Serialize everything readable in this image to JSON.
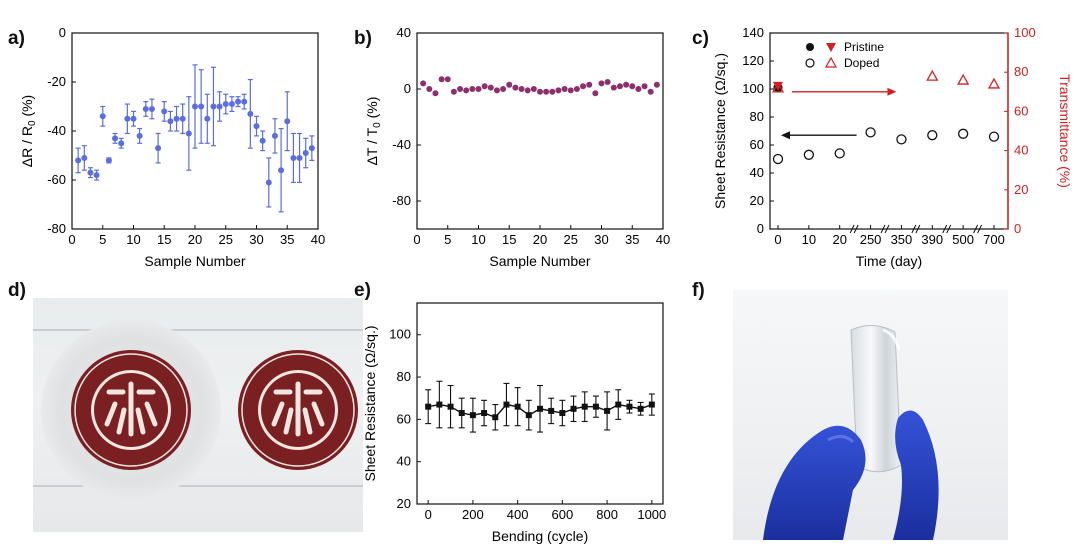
{
  "panel_labels": {
    "a": "a)",
    "b": "b)",
    "c": "c)",
    "d": "d)",
    "e": "e)",
    "f": "f)"
  },
  "chart_data": [
    {
      "id": "a",
      "type": "scatter",
      "title": "",
      "xlabel": "Sample Number",
      "ylabel": "ΔR / R0 (%)",
      "xlim": [
        0,
        40
      ],
      "ylim": [
        -80,
        0
      ],
      "xticks": [
        0,
        5,
        10,
        15,
        20,
        25,
        30,
        35,
        40
      ],
      "yticks": [
        0,
        -20,
        -40,
        -60,
        -80
      ],
      "color": "#5b6ee0",
      "series": [
        {
          "name": "ΔR/R0",
          "x": [
            1,
            2,
            3,
            4,
            5,
            6,
            7,
            8,
            9,
            10,
            11,
            12,
            13,
            14,
            15,
            16,
            17,
            18,
            19,
            20,
            21,
            22,
            23,
            24,
            25,
            26,
            27,
            28,
            29,
            30,
            31,
            32,
            33,
            34,
            35,
            36,
            37,
            38,
            39
          ],
          "values": [
            -52,
            -51,
            -57,
            -58,
            -34,
            -52,
            -43,
            -45,
            -35,
            -35,
            -42,
            -31,
            -31,
            -47,
            -32,
            -36,
            -35,
            -35,
            -41,
            -30,
            -30,
            -35,
            -30,
            -30,
            -29,
            -29,
            -28,
            -28,
            -33,
            -38,
            -44,
            -61,
            -42,
            -56,
            -36,
            -51,
            -51,
            -49,
            -47
          ],
          "errors": [
            5,
            5,
            2,
            2,
            4,
            1,
            2,
            2,
            6,
            3,
            3,
            3,
            4,
            6,
            4,
            4,
            5,
            6,
            15,
            17,
            15,
            10,
            16,
            6,
            4,
            3,
            2,
            3,
            14,
            4,
            4,
            10,
            7,
            17,
            12,
            10,
            10,
            6,
            5
          ]
        }
      ]
    },
    {
      "id": "b",
      "type": "scatter",
      "title": "",
      "xlabel": "Sample Number",
      "ylabel": "ΔT / T0 (%)",
      "xlim": [
        0,
        40
      ],
      "ylim": [
        -100,
        40
      ],
      "xticks": [
        0,
        5,
        10,
        15,
        20,
        25,
        30,
        35,
        40
      ],
      "yticks": [
        40,
        0,
        -40,
        -80
      ],
      "color": "#8e2f6d",
      "series": [
        {
          "name": "ΔT/T0",
          "x": [
            1,
            2,
            3,
            4,
            5,
            6,
            7,
            8,
            9,
            10,
            11,
            12,
            13,
            14,
            15,
            16,
            17,
            18,
            19,
            20,
            21,
            22,
            23,
            24,
            25,
            26,
            27,
            28,
            29,
            30,
            31,
            32,
            33,
            34,
            35,
            36,
            37,
            38,
            39
          ],
          "values": [
            4,
            0,
            -3,
            7,
            7,
            -2,
            0,
            -1,
            0,
            0,
            2,
            1,
            -1,
            0,
            3,
            1,
            0,
            -1,
            0,
            -2,
            -2,
            -2,
            -1,
            0,
            -1,
            0,
            2,
            3,
            -3,
            4,
            5,
            1,
            2,
            3,
            2,
            0,
            2,
            -2,
            3
          ]
        }
      ]
    },
    {
      "id": "c",
      "type": "scatter",
      "title": "",
      "xlabel": "Time (day)",
      "ylabel": "Sheet Resistance (Ω/sq.)",
      "ylabel_right": "Transmittance (%)",
      "categories": [
        "0",
        "10",
        "20",
        "250",
        "350",
        "390",
        "500",
        "700"
      ],
      "ylim": [
        0,
        140
      ],
      "ylim_right": [
        0,
        100
      ],
      "yticks": [
        0,
        20,
        40,
        60,
        80,
        100,
        120,
        140
      ],
      "yticks_right": [
        0,
        20,
        40,
        60,
        80,
        100
      ],
      "right_color": "#d42020",
      "legend": {
        "pristine": "Pristine",
        "doped": "Doped",
        "location": "top-left"
      },
      "series": [
        {
          "name": "Sheet Resistance Pristine",
          "axis": "left",
          "marker": "filled-circle",
          "categories": [
            "0"
          ],
          "values": [
            101
          ]
        },
        {
          "name": "Sheet Resistance Doped",
          "axis": "left",
          "marker": "open-circle",
          "categories": [
            "0",
            "10",
            "20",
            "250",
            "350",
            "390",
            "500",
            "700"
          ],
          "values": [
            50,
            53,
            54,
            69,
            64,
            67,
            68,
            66
          ]
        },
        {
          "name": "Transmittance Pristine",
          "axis": "right",
          "marker": "filled-triangle-down",
          "categories": [
            "0"
          ],
          "values": [
            73
          ]
        },
        {
          "name": "Transmittance Doped",
          "axis": "right",
          "marker": "open-triangle-up",
          "categories": [
            "0",
            "390",
            "500",
            "700"
          ],
          "values": [
            72,
            78,
            76,
            74
          ]
        }
      ]
    },
    {
      "id": "e",
      "type": "line",
      "title": "",
      "xlabel": "Bending (cycle)",
      "ylabel": "Sheet Resistance (Ω/sq.)",
      "xlim": [
        -50,
        1050
      ],
      "ylim": [
        20,
        115
      ],
      "xticks": [
        0,
        200,
        400,
        600,
        800,
        1000
      ],
      "yticks": [
        20,
        40,
        60,
        80,
        100
      ],
      "color": "#111111",
      "series": [
        {
          "name": "Sheet Resistance",
          "x": [
            0,
            50,
            100,
            150,
            200,
            250,
            300,
            350,
            400,
            450,
            500,
            550,
            600,
            650,
            700,
            750,
            800,
            850,
            900,
            950,
            1000
          ],
          "values": [
            66,
            67,
            66,
            63,
            62,
            63,
            61,
            67,
            66,
            62,
            65,
            64,
            63,
            65,
            66,
            66,
            64,
            67,
            66,
            65,
            67
          ],
          "errors": [
            8,
            11,
            10,
            7,
            8,
            6,
            6,
            10,
            9,
            7,
            11,
            6,
            6,
            6,
            7,
            5,
            9,
            7,
            3,
            3,
            5
          ]
        }
      ]
    }
  ]
}
